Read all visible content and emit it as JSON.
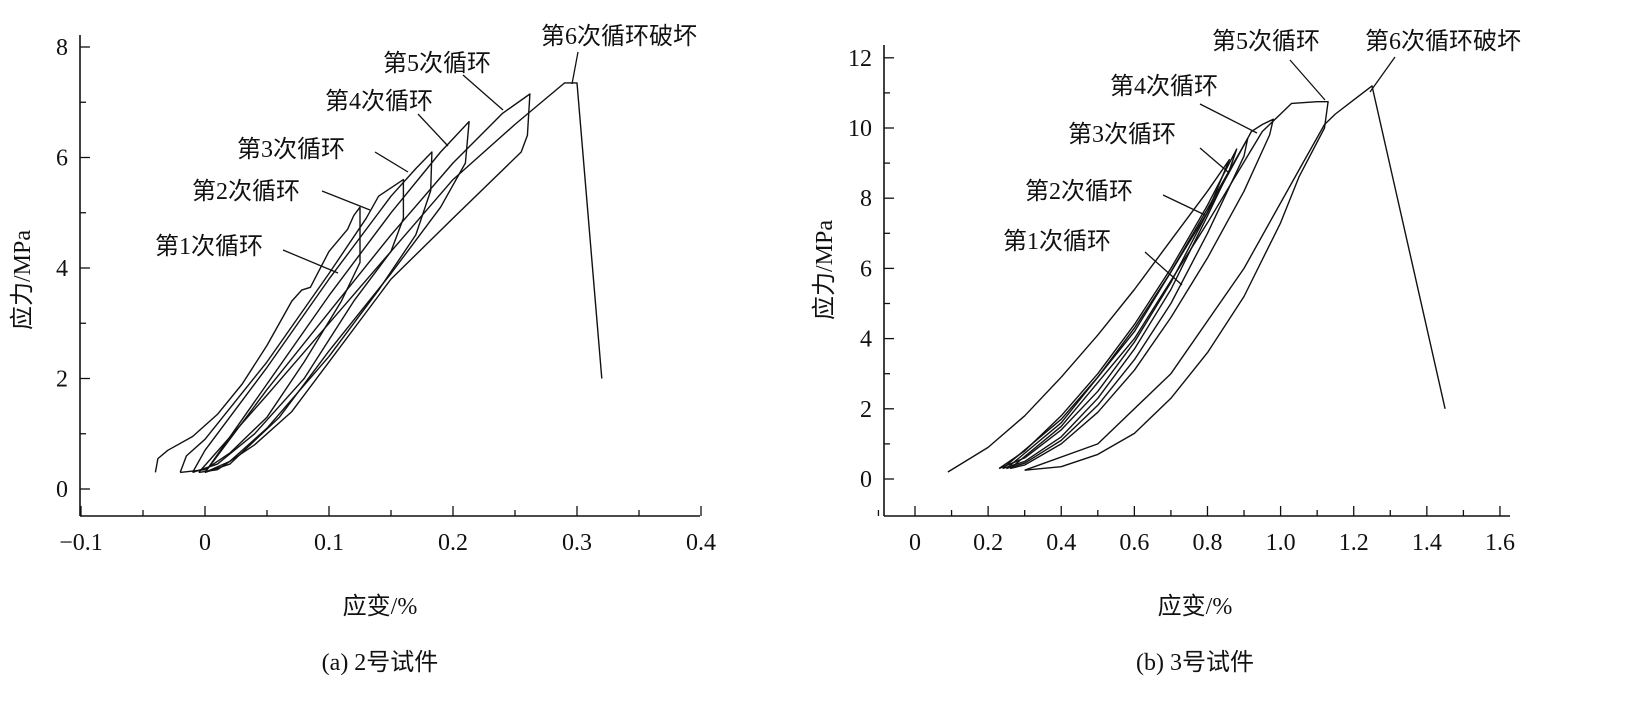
{
  "chart_data": [
    {
      "type": "line",
      "title": "(a) 2号试件",
      "xlabel": "应变/%",
      "ylabel": "应力/MPa",
      "xlim": [
        -0.1,
        0.4
      ],
      "ylim": [
        -0.5,
        8
      ],
      "xticks": [
        -0.1,
        0,
        0.1,
        0.2,
        0.3,
        0.4
      ],
      "xtick_labels": [
        "−0.1",
        "0",
        "0.1",
        "0.2",
        "0.3",
        "0.4"
      ],
      "yticks": [
        0,
        2,
        4,
        6,
        8
      ],
      "ytick_labels": [
        "0",
        "2",
        "4",
        "6",
        "8"
      ],
      "grid": false,
      "annotations": [
        "第1次循环",
        "第2次循环",
        "第3次循环",
        "第4次循环",
        "第5次循环",
        "第6次循环破坏"
      ],
      "series": [
        {
          "name": "第1次循环",
          "points": [
            [
              -0.04,
              0.3
            ],
            [
              -0.038,
              0.55
            ],
            [
              -0.03,
              0.7
            ],
            [
              -0.01,
              0.95
            ],
            [
              0.01,
              1.35
            ],
            [
              0.03,
              1.9
            ],
            [
              0.05,
              2.6
            ],
            [
              0.07,
              3.4
            ],
            [
              0.078,
              3.6
            ],
            [
              0.085,
              3.65
            ],
            [
              0.1,
              4.3
            ],
            [
              0.115,
              4.7
            ],
            [
              0.12,
              4.95
            ],
            [
              0.125,
              5.1
            ],
            [
              0.125,
              4.1
            ],
            [
              0.11,
              3.4
            ],
            [
              0.08,
              2.3
            ],
            [
              0.05,
              1.3
            ],
            [
              0.02,
              0.65
            ],
            [
              0,
              0.35
            ],
            [
              -0.02,
              0.3
            ]
          ]
        },
        {
          "name": "第2次循环",
          "points": [
            [
              -0.02,
              0.3
            ],
            [
              -0.015,
              0.6
            ],
            [
              0,
              0.9
            ],
            [
              0.05,
              2.3
            ],
            [
              0.1,
              3.9
            ],
            [
              0.13,
              4.9
            ],
            [
              0.14,
              5.3
            ],
            [
              0.16,
              5.6
            ],
            [
              0.16,
              4.9
            ],
            [
              0.15,
              4.3
            ],
            [
              0.12,
              3.4
            ],
            [
              0.08,
              2.0
            ],
            [
              0.04,
              1.0
            ],
            [
              0.01,
              0.45
            ],
            [
              -0.01,
              0.3
            ]
          ]
        },
        {
          "name": "第3次循环",
          "points": [
            [
              -0.01,
              0.3
            ],
            [
              0,
              0.7
            ],
            [
              0.05,
              2.2
            ],
            [
              0.1,
              3.8
            ],
            [
              0.15,
              5.3
            ],
            [
              0.17,
              5.8
            ],
            [
              0.183,
              6.1
            ],
            [
              0.182,
              5.4
            ],
            [
              0.17,
              4.6
            ],
            [
              0.14,
              3.6
            ],
            [
              0.1,
              2.4
            ],
            [
              0.05,
              1.1
            ],
            [
              0.02,
              0.5
            ],
            [
              0,
              0.3
            ]
          ]
        },
        {
          "name": "第4次循环",
          "points": [
            [
              0,
              0.3
            ],
            [
              0.05,
              1.9
            ],
            [
              0.1,
              3.5
            ],
            [
              0.15,
              5.0
            ],
            [
              0.19,
              6.1
            ],
            [
              0.213,
              6.65
            ],
            [
              0.21,
              5.9
            ],
            [
              0.19,
              5.1
            ],
            [
              0.15,
              3.9
            ],
            [
              0.1,
              2.5
            ],
            [
              0.06,
              1.3
            ],
            [
              0.02,
              0.45
            ],
            [
              0,
              0.3
            ]
          ]
        },
        {
          "name": "第5次循环",
          "points": [
            [
              0,
              0.3
            ],
            [
              0.05,
              1.8
            ],
            [
              0.1,
              3.2
            ],
            [
              0.15,
              4.6
            ],
            [
              0.2,
              5.9
            ],
            [
              0.24,
              6.8
            ],
            [
              0.262,
              7.15
            ],
            [
              0.26,
              6.4
            ],
            [
              0.255,
              6.1
            ],
            [
              0.2,
              4.9
            ],
            [
              0.15,
              3.8
            ],
            [
              0.1,
              2.3
            ],
            [
              0.07,
              1.4
            ],
            [
              0.04,
              0.8
            ],
            [
              0.01,
              0.35
            ],
            [
              -0.005,
              0.3
            ]
          ]
        },
        {
          "name": "第6次循环破坏",
          "points": [
            [
              -0.005,
              0.3
            ],
            [
              0.05,
              1.7
            ],
            [
              0.1,
              3.0
            ],
            [
              0.15,
              4.3
            ],
            [
              0.2,
              5.6
            ],
            [
              0.25,
              6.6
            ],
            [
              0.29,
              7.35
            ],
            [
              0.3,
              7.35
            ],
            [
              0.32,
              2.0
            ]
          ]
        }
      ]
    },
    {
      "type": "line",
      "title": "(b) 3号试件",
      "xlabel": "应变/%",
      "ylabel": "应力/MPa",
      "xlim": [
        -0.1,
        1.6
      ],
      "ylim": [
        -1,
        12
      ],
      "xticks": [
        0,
        0.2,
        0.4,
        0.6,
        0.8,
        1.0,
        1.2,
        1.4,
        1.6
      ],
      "xtick_labels": [
        "0",
        "0.2",
        "0.4",
        "0.6",
        "0.8",
        "1.0",
        "1.2",
        "1.4",
        "1.6"
      ],
      "yticks": [
        0,
        2,
        4,
        6,
        8,
        10,
        12
      ],
      "ytick_labels": [
        "0",
        "2",
        "4",
        "6",
        "8",
        "10",
        "12"
      ],
      "grid": false,
      "annotations": [
        "第1次循环",
        "第2次循环",
        "第3次循环",
        "第4次循环",
        "第5次循环",
        "第6次循环破坏"
      ],
      "series": [
        {
          "name": "第1次循环",
          "points": [
            [
              0.09,
              0.2
            ],
            [
              0.2,
              0.9
            ],
            [
              0.3,
              1.8
            ],
            [
              0.4,
              2.9
            ],
            [
              0.5,
              4.1
            ],
            [
              0.6,
              5.4
            ],
            [
              0.7,
              6.8
            ],
            [
              0.8,
              8.2
            ],
            [
              0.86,
              9.1
            ],
            [
              0.84,
              8.6
            ],
            [
              0.8,
              7.6
            ],
            [
              0.7,
              5.6
            ],
            [
              0.6,
              3.9
            ],
            [
              0.5,
              2.5
            ],
            [
              0.4,
              1.4
            ],
            [
              0.3,
              0.6
            ],
            [
              0.23,
              0.3
            ]
          ]
        },
        {
          "name": "第2次循环",
          "points": [
            [
              0.23,
              0.3
            ],
            [
              0.3,
              0.8
            ],
            [
              0.4,
              1.8
            ],
            [
              0.5,
              3.0
            ],
            [
              0.6,
              4.4
            ],
            [
              0.7,
              6.0
            ],
            [
              0.8,
              7.8
            ],
            [
              0.88,
              9.4
            ],
            [
              0.86,
              8.8
            ],
            [
              0.8,
              7.5
            ],
            [
              0.7,
              5.4
            ],
            [
              0.6,
              3.7
            ],
            [
              0.5,
              2.3
            ],
            [
              0.4,
              1.2
            ],
            [
              0.3,
              0.5
            ],
            [
              0.24,
              0.3
            ]
          ]
        },
        {
          "name": "第3次循环",
          "points": [
            [
              0.24,
              0.3
            ],
            [
              0.4,
              1.7
            ],
            [
              0.5,
              2.9
            ],
            [
              0.6,
              4.3
            ],
            [
              0.7,
              5.9
            ],
            [
              0.8,
              7.7
            ],
            [
              0.91,
              9.7
            ],
            [
              0.9,
              9.2
            ],
            [
              0.8,
              7.0
            ],
            [
              0.7,
              5.0
            ],
            [
              0.6,
              3.4
            ],
            [
              0.5,
              2.1
            ],
            [
              0.4,
              1.1
            ],
            [
              0.3,
              0.45
            ],
            [
              0.25,
              0.3
            ]
          ]
        },
        {
          "name": "第4次循环",
          "points": [
            [
              0.25,
              0.3
            ],
            [
              0.4,
              1.6
            ],
            [
              0.6,
              4.2
            ],
            [
              0.8,
              7.6
            ],
            [
              0.92,
              9.9
            ],
            [
              0.95,
              10.1
            ],
            [
              0.98,
              10.25
            ],
            [
              0.97,
              9.8
            ],
            [
              0.9,
              8.2
            ],
            [
              0.8,
              6.3
            ],
            [
              0.7,
              4.6
            ],
            [
              0.6,
              3.1
            ],
            [
              0.5,
              1.9
            ],
            [
              0.4,
              1.0
            ],
            [
              0.3,
              0.4
            ],
            [
              0.26,
              0.3
            ]
          ]
        },
        {
          "name": "第5次循环",
          "points": [
            [
              0.26,
              0.3
            ],
            [
              0.4,
              1.5
            ],
            [
              0.6,
              4.0
            ],
            [
              0.8,
              7.3
            ],
            [
              0.95,
              9.9
            ],
            [
              1.0,
              10.4
            ],
            [
              1.03,
              10.7
            ],
            [
              1.1,
              10.75
            ],
            [
              1.13,
              10.75
            ],
            [
              1.12,
              10.0
            ],
            [
              1.05,
              8.6
            ],
            [
              1.0,
              7.3
            ],
            [
              0.9,
              5.2
            ],
            [
              0.8,
              3.6
            ],
            [
              0.7,
              2.3
            ],
            [
              0.6,
              1.3
            ],
            [
              0.5,
              0.7
            ],
            [
              0.4,
              0.35
            ],
            [
              0.3,
              0.25
            ]
          ]
        },
        {
          "name": "第6次循环破坏",
          "points": [
            [
              0.3,
              0.25
            ],
            [
              0.5,
              1.0
            ],
            [
              0.7,
              3.0
            ],
            [
              0.9,
              6.0
            ],
            [
              1.05,
              8.8
            ],
            [
              1.12,
              10.1
            ],
            [
              1.15,
              10.4
            ],
            [
              1.2,
              10.8
            ],
            [
              1.25,
              11.2
            ],
            [
              1.45,
              2.0
            ]
          ]
        }
      ]
    }
  ]
}
